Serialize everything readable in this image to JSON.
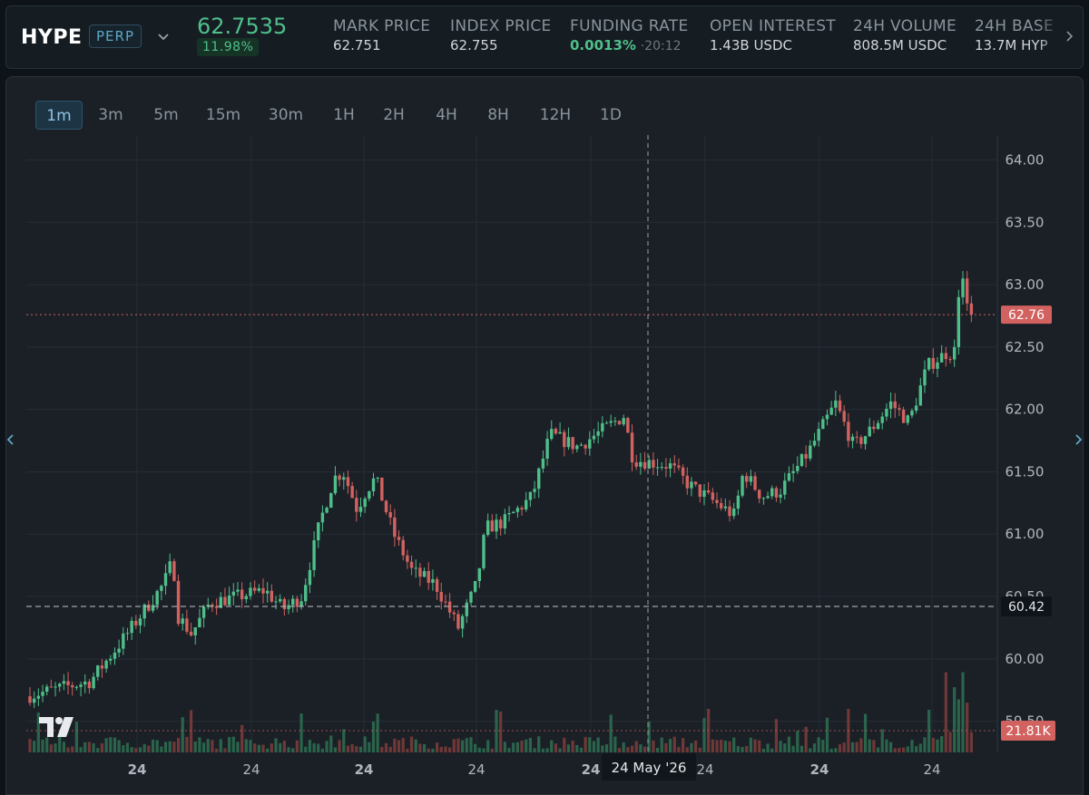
{
  "market": {
    "symbol": "HYPE",
    "type_badge": "PERP",
    "last_price": "62.7535",
    "change_pct": "11.98%",
    "stats": [
      {
        "label": "MARK PRICE",
        "value": "62.751"
      },
      {
        "label": "INDEX PRICE",
        "value": "62.755"
      },
      {
        "label": "FUNDING RATE",
        "value": "0.0013%",
        "countdown": "20:12"
      },
      {
        "label": "OPEN INTEREST",
        "value": "1.43B USDC"
      },
      {
        "label": "24H VOLUME",
        "value": "808.5M USDC"
      },
      {
        "label": "24H BASE",
        "value": "13.7M HYP"
      }
    ]
  },
  "intervals": [
    "1m",
    "3m",
    "5m",
    "15m",
    "30m",
    "1H",
    "2H",
    "4H",
    "8H",
    "12H",
    "1D"
  ],
  "selected_interval": "1m",
  "colors": {
    "up": "#4fbf8a",
    "down": "#d2625f",
    "accent": "#8ec2e2",
    "background": "#1b2027"
  },
  "chart": {
    "last_price_label": "62.76",
    "crosshair_price_label": "60.42",
    "crosshair_date_label": "24 May '26",
    "volume_label": "21.81K"
  },
  "chart_data": {
    "type": "candlestick",
    "y_ticks": [
      "64.00",
      "63.50",
      "63.00",
      "62.50",
      "62.00",
      "61.50",
      "61.00",
      "60.50",
      "60.00",
      "59.50"
    ],
    "ylim": [
      59.25,
      64.2
    ],
    "x_ticks": [
      "24",
      "24",
      "24",
      "24",
      "24",
      "24",
      "24",
      "24"
    ],
    "last_price": 62.76,
    "crosshair_price": 60.42,
    "path_points": [
      [
        0,
        59.7
      ],
      [
        0.07,
        59.82
      ],
      [
        0.1,
        60.1
      ],
      [
        0.15,
        60.6
      ],
      [
        0.16,
        60.8
      ],
      [
        0.165,
        60.35
      ],
      [
        0.18,
        60.2
      ],
      [
        0.2,
        60.45
      ],
      [
        0.26,
        60.55
      ],
      [
        0.28,
        60.4
      ],
      [
        0.3,
        60.5
      ],
      [
        0.32,
        61.1
      ],
      [
        0.335,
        61.45
      ],
      [
        0.345,
        61.5
      ],
      [
        0.36,
        61.2
      ],
      [
        0.37,
        61.35
      ],
      [
        0.38,
        61.45
      ],
      [
        0.4,
        61.0
      ],
      [
        0.42,
        60.7
      ],
      [
        0.445,
        60.6
      ],
      [
        0.47,
        60.25
      ],
      [
        0.49,
        60.6
      ],
      [
        0.5,
        61.05
      ],
      [
        0.52,
        61.1
      ],
      [
        0.55,
        61.3
      ],
      [
        0.57,
        61.8
      ],
      [
        0.6,
        61.7
      ],
      [
        0.63,
        61.85
      ],
      [
        0.65,
        61.95
      ],
      [
        0.66,
        61.6
      ],
      [
        0.7,
        61.55
      ],
      [
        0.72,
        61.4
      ],
      [
        0.75,
        61.25
      ],
      [
        0.77,
        61.15
      ],
      [
        0.78,
        61.5
      ],
      [
        0.8,
        61.3
      ],
      [
        0.82,
        61.35
      ],
      [
        0.85,
        61.65
      ],
      [
        0.88,
        62.05
      ],
      [
        0.9,
        61.7
      ],
      [
        0.92,
        61.85
      ],
      [
        0.94,
        62.05
      ],
      [
        0.96,
        61.9
      ],
      [
        0.98,
        62.35
      ],
      [
        1.0,
        62.45
      ]
    ],
    "tail_points": [
      62.5,
      62.9,
      63.05,
      62.85,
      62.76
    ]
  }
}
